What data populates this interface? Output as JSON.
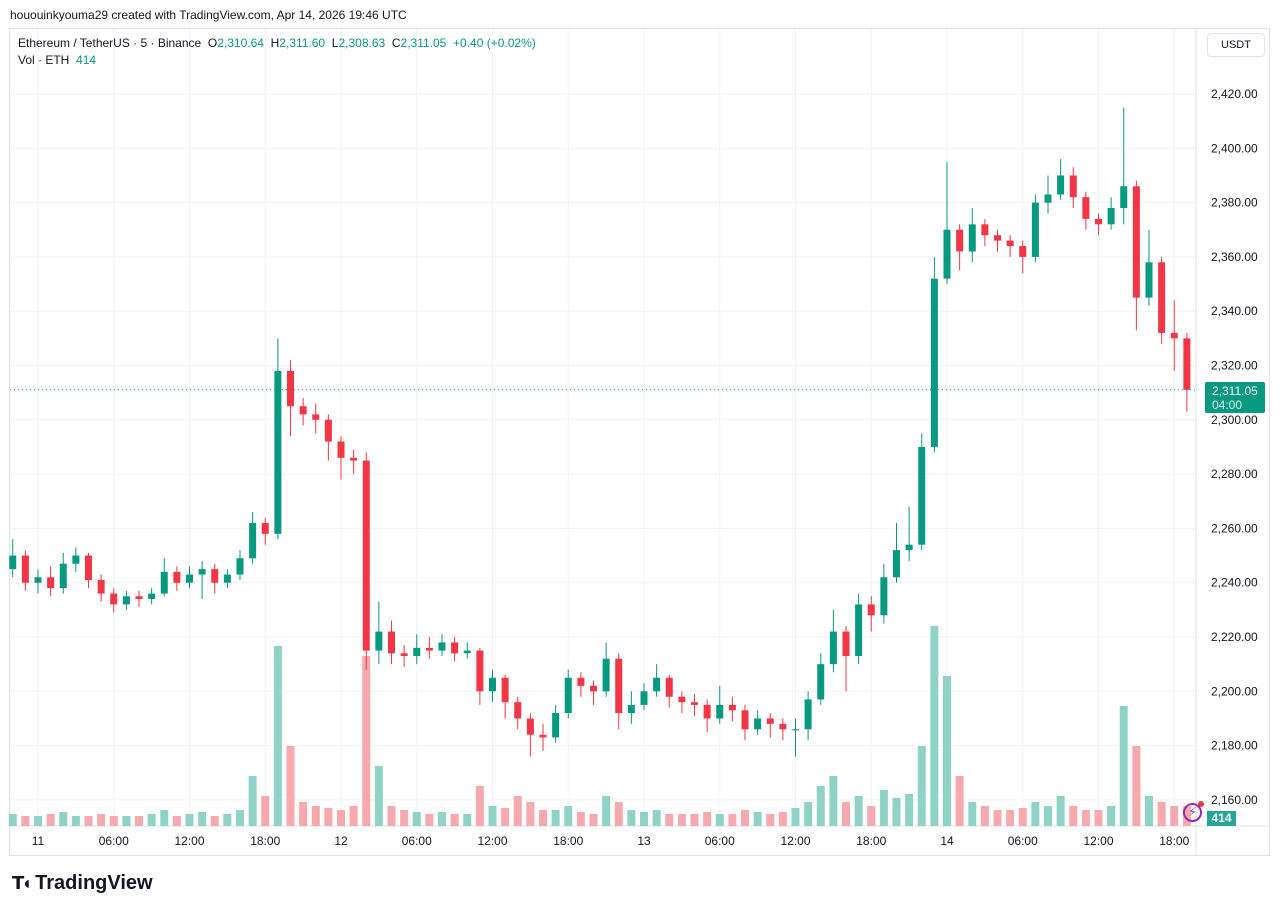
{
  "credit": "hououinkyouma29 created with TradingView.com, Apr 14, 2026 19:46 UTC",
  "legend": {
    "symbol": "Ethereum / TetherUS · 5 · Binance",
    "o_label": "O",
    "o": "2,310.64",
    "h_label": "H",
    "h": "2,311.60",
    "l_label": "L",
    "l": "2,308.63",
    "c_label": "C",
    "c": "2,311.05",
    "change": "+0.40 (+0.02%)",
    "vol_label": "Vol · ETH",
    "vol": "414"
  },
  "currency_button": "USDT",
  "last_price": {
    "price": "2,311.05",
    "countdown": "04:00"
  },
  "volume_badge": "414",
  "logo_text": "TradingView",
  "colors": {
    "up": "#089981",
    "down": "#f23645",
    "vol_up": "#8fd3c6",
    "vol_down": "#f7a9ae",
    "grid": "#f0f3fa"
  },
  "chart_data": {
    "type": "candlestick",
    "interval_shown": "5",
    "rendered_resolution": "1h approx",
    "start": "Apr 10 22:00",
    "ylim": [
      2150,
      2425
    ],
    "y_ticks": [
      "2,420.00",
      "2,400.00",
      "2,380.00",
      "2,360.00",
      "2,340.00",
      "2,320.00",
      "2,300.00",
      "2,280.00",
      "2,260.00",
      "2,240.00",
      "2,220.00",
      "2,200.00",
      "2,180.00",
      "2,160.00"
    ],
    "y_tick_values": [
      2420,
      2400,
      2380,
      2360,
      2340,
      2320,
      2300,
      2280,
      2260,
      2240,
      2220,
      2200,
      2180,
      2160
    ],
    "x_ticks": [
      "11",
      "06:00",
      "12:00",
      "18:00",
      "12",
      "06:00",
      "12:00",
      "18:00",
      "13",
      "06:00",
      "12:00",
      "18:00",
      "14",
      "06:00",
      "12:00",
      "18:00"
    ],
    "x_tick_hours": [
      2,
      8,
      14,
      20,
      26,
      32,
      38,
      44,
      50,
      56,
      62,
      68,
      74,
      80,
      86,
      92
    ],
    "grid": true,
    "first_open": 2245,
    "close": [
      2250,
      2240,
      2242,
      2238,
      2247,
      2250,
      2241,
      2236,
      2232,
      2235,
      2234,
      2236,
      2244,
      2240,
      2243,
      2245,
      2240,
      2243,
      2249,
      2262,
      2258,
      2318,
      2305,
      2302,
      2300,
      2292,
      2286,
      2285,
      2215,
      2222,
      2214,
      2213,
      2216,
      2215,
      2218,
      2214,
      2215,
      2200,
      2205,
      2196,
      2190,
      2184,
      2183,
      2192,
      2205,
      2202,
      2200,
      2212,
      2192,
      2195,
      2200,
      2205,
      2198,
      2196,
      2195,
      2190,
      2195,
      2193,
      2186,
      2190,
      2188,
      2186,
      2186,
      2197,
      2210,
      2222,
      2213,
      2232,
      2228,
      2242,
      2252,
      2254,
      2290,
      2352,
      2370,
      2362,
      2372,
      2368,
      2366,
      2364,
      2360,
      2380,
      2383,
      2390,
      2382,
      2374,
      2372,
      2378,
      2386,
      2345,
      2358,
      2332,
      2330,
      2311.05
    ],
    "high": [
      2256,
      2252,
      2245,
      2246,
      2251,
      2253,
      2251,
      2243,
      2238,
      2237,
      2237,
      2238,
      2249,
      2246,
      2246,
      2248,
      2247,
      2245,
      2252,
      2266,
      2264,
      2330,
      2322,
      2308,
      2306,
      2302,
      2294,
      2289,
      2288,
      2233,
      2226,
      2217,
      2221,
      2220,
      2221,
      2220,
      2218,
      2216,
      2208,
      2206,
      2198,
      2192,
      2188,
      2195,
      2208,
      2207,
      2204,
      2218,
      2214,
      2200,
      2203,
      2210,
      2206,
      2200,
      2199,
      2197,
      2202,
      2198,
      2195,
      2193,
      2192,
      2190,
      2190,
      2200,
      2214,
      2230,
      2224,
      2236,
      2235,
      2247,
      2262,
      2268,
      2295,
      2360,
      2395,
      2372,
      2378,
      2374,
      2370,
      2368,
      2366,
      2383,
      2390,
      2396,
      2393,
      2384,
      2376,
      2382,
      2415,
      2388,
      2370,
      2360,
      2344,
      2332
    ],
    "low": [
      2242,
      2237,
      2236,
      2235,
      2236,
      2244,
      2238,
      2233,
      2229,
      2230,
      2231,
      2232,
      2235,
      2237,
      2238,
      2234,
      2236,
      2238,
      2241,
      2247,
      2254,
      2256,
      2294,
      2298,
      2295,
      2285,
      2278,
      2280,
      2208,
      2210,
      2210,
      2209,
      2210,
      2212,
      2213,
      2211,
      2212,
      2195,
      2196,
      2190,
      2186,
      2176,
      2178,
      2181,
      2190,
      2198,
      2195,
      2198,
      2186,
      2188,
      2193,
      2198,
      2194,
      2192,
      2191,
      2185,
      2188,
      2189,
      2182,
      2184,
      2183,
      2182,
      2176,
      2182,
      2195,
      2207,
      2200,
      2210,
      2222,
      2225,
      2240,
      2248,
      2252,
      2288,
      2350,
      2355,
      2358,
      2364,
      2362,
      2360,
      2354,
      2358,
      2376,
      2381,
      2378,
      2370,
      2368,
      2370,
      2372,
      2333,
      2342,
      2328,
      2318,
      2303
    ],
    "volume_relative": [
      6,
      5,
      5,
      6,
      7,
      5,
      5,
      6,
      5,
      5,
      5,
      6,
      8,
      5,
      6,
      7,
      5,
      6,
      8,
      25,
      15,
      90,
      40,
      12,
      10,
      9,
      8,
      10,
      85,
      30,
      10,
      8,
      7,
      6,
      7,
      6,
      6,
      20,
      10,
      9,
      15,
      12,
      8,
      8,
      10,
      7,
      6,
      15,
      12,
      8,
      7,
      8,
      6,
      6,
      6,
      7,
      6,
      6,
      8,
      7,
      6,
      7,
      9,
      12,
      20,
      25,
      12,
      15,
      10,
      18,
      14,
      16,
      40,
      100,
      75,
      25,
      12,
      10,
      8,
      8,
      9,
      12,
      10,
      15,
      10,
      8,
      8,
      10,
      60,
      40,
      15,
      12,
      10,
      10
    ],
    "last_price": 2311.05
  }
}
